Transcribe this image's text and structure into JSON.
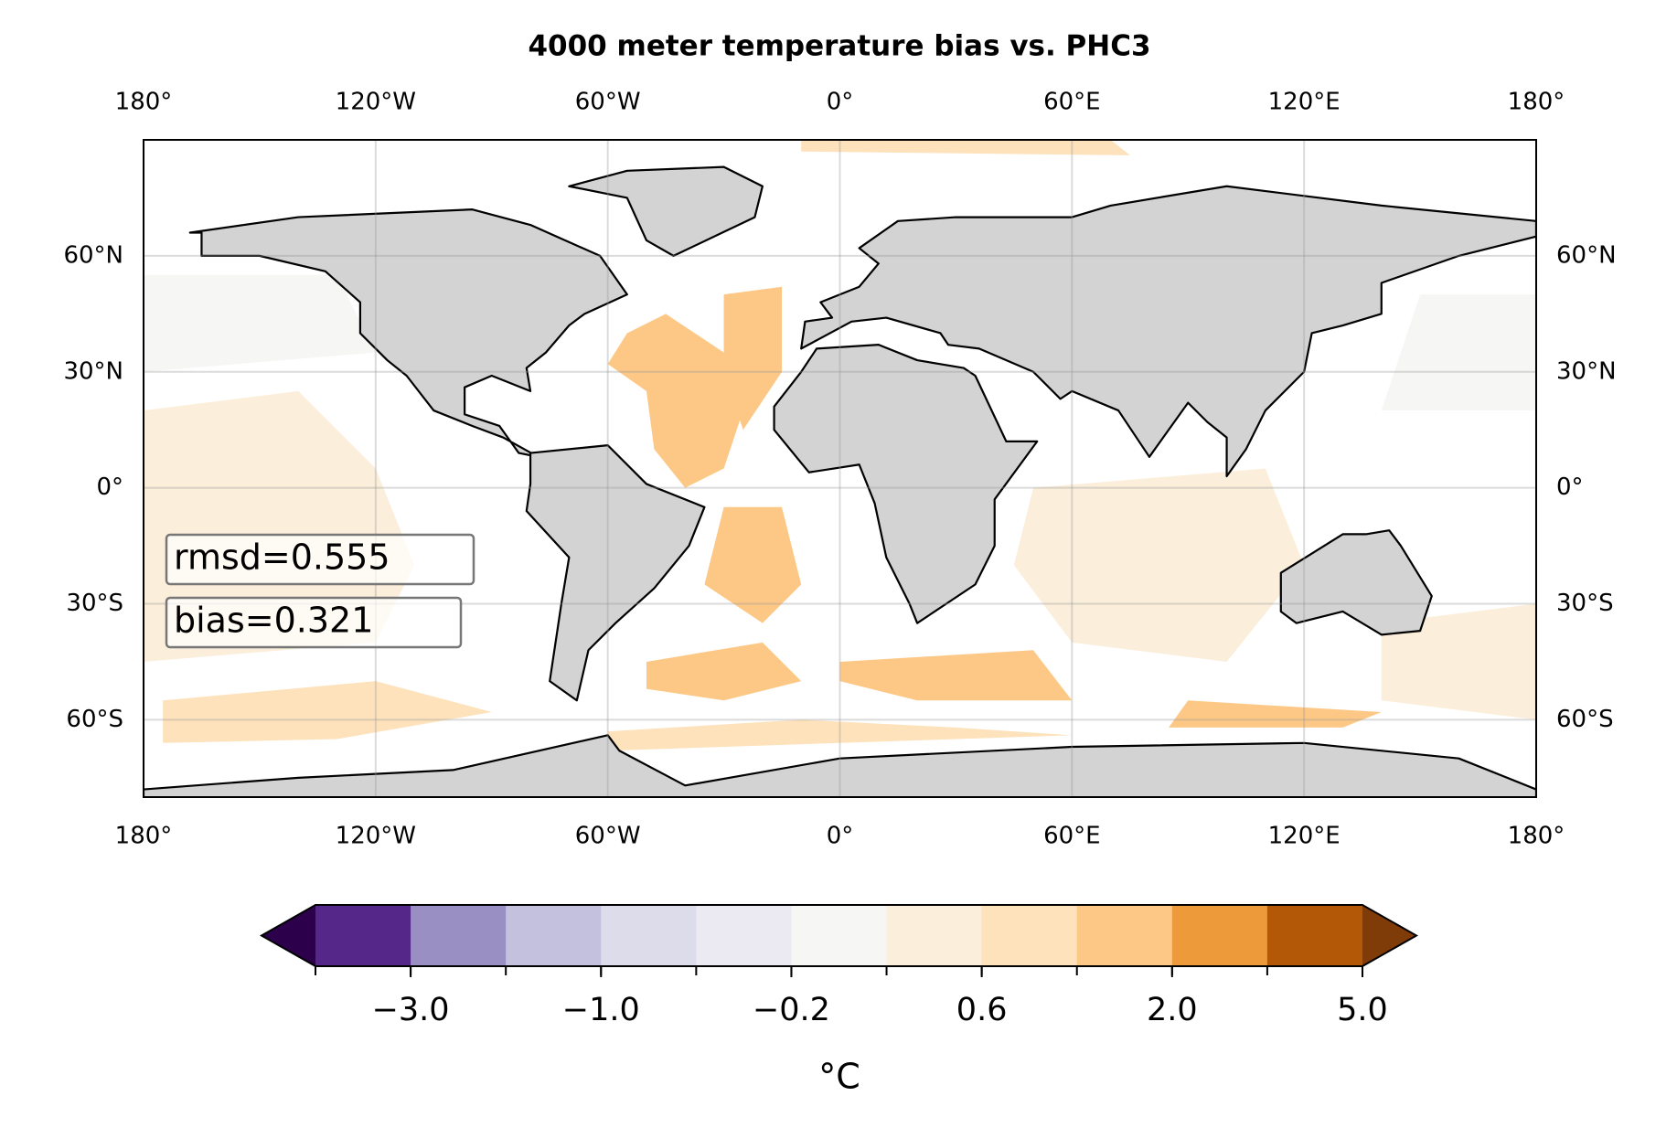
{
  "chart_data": {
    "type": "map",
    "title": "4000 meter temperature bias vs. PHC3",
    "xlim": [
      -180,
      180
    ],
    "ylim": [
      -80,
      90
    ],
    "xticks": [
      {
        "value": -180,
        "label": "180°"
      },
      {
        "value": -120,
        "label": "120°W"
      },
      {
        "value": -60,
        "label": "60°W"
      },
      {
        "value": 0,
        "label": "0°"
      },
      {
        "value": 60,
        "label": "60°E"
      },
      {
        "value": 120,
        "label": "120°E"
      },
      {
        "value": 180,
        "label": "180°"
      }
    ],
    "yticks": [
      {
        "value": -60,
        "label": "60°S"
      },
      {
        "value": -30,
        "label": "30°S"
      },
      {
        "value": 0,
        "label": "0°"
      },
      {
        "value": 30,
        "label": "30°N"
      },
      {
        "value": 60,
        "label": "60°N"
      }
    ],
    "grid": true,
    "annotations": [
      "rmsd=0.555",
      "bias=0.321"
    ],
    "colorbar": {
      "levels": [
        -5,
        -3,
        -2,
        -1,
        -0.6,
        -0.2,
        0.2,
        0.6,
        1,
        2,
        3,
        5
      ],
      "colors": [
        "#542788",
        "#9a8fc2",
        "#c4c1de",
        "#dcdcea",
        "#ebeaf3",
        "#f6f6f4",
        "#fbeedb",
        "#fde2bc",
        "#fdc885",
        "#ec9a3a",
        "#b35806"
      ],
      "under_color": "#2d004b",
      "over_color": "#7f3b08",
      "ticks": [
        {
          "value": -3,
          "label": "−3.0"
        },
        {
          "value": -1,
          "label": "−1.0"
        },
        {
          "value": -0.2,
          "label": "−0.2"
        },
        {
          "value": 0.6,
          "label": "0.6"
        },
        {
          "value": 2,
          "label": "2.0"
        },
        {
          "value": 5,
          "label": "5.0"
        }
      ],
      "label": "°C"
    }
  }
}
